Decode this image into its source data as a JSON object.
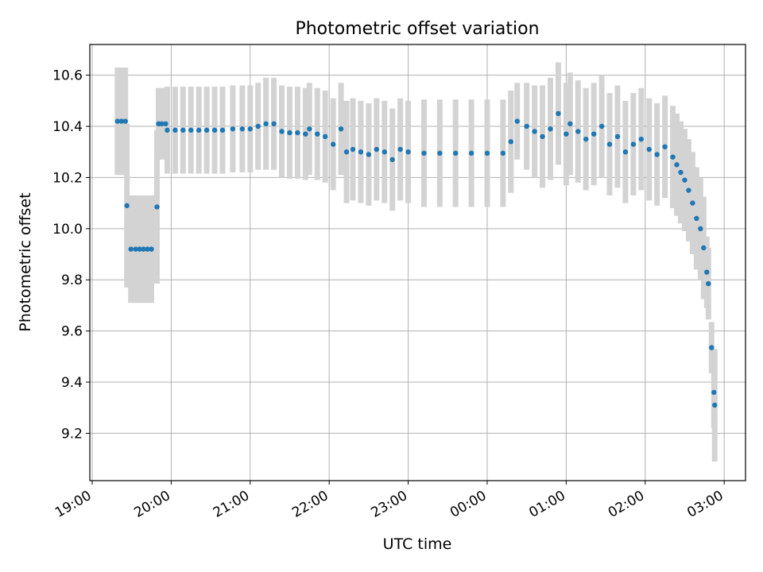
{
  "chart_data": {
    "type": "scatter",
    "title": "Photometric offset variation",
    "xlabel": "UTC time",
    "ylabel": "Photometric offset",
    "x_unit": "hours (UTC, continuing past midnight)",
    "xlim": [
      18.97,
      27.27
    ],
    "ylim": [
      9.015,
      10.72
    ],
    "grid": true,
    "x_ticks": [
      {
        "value": 19,
        "label": "19:00"
      },
      {
        "value": 20,
        "label": "20:00"
      },
      {
        "value": 21,
        "label": "21:00"
      },
      {
        "value": 22,
        "label": "22:00"
      },
      {
        "value": 23,
        "label": "23:00"
      },
      {
        "value": 24,
        "label": "00:00"
      },
      {
        "value": 25,
        "label": "01:00"
      },
      {
        "value": 26,
        "label": "02:00"
      },
      {
        "value": 27,
        "label": "03:00"
      }
    ],
    "y_ticks": [
      {
        "value": 9.2,
        "label": "9.2"
      },
      {
        "value": 9.4,
        "label": "9.4"
      },
      {
        "value": 9.6,
        "label": "9.6"
      },
      {
        "value": 9.8,
        "label": "9.8"
      },
      {
        "value": 10.0,
        "label": "10.0"
      },
      {
        "value": 10.2,
        "label": "10.2"
      },
      {
        "value": 10.4,
        "label": "10.4"
      },
      {
        "value": 10.6,
        "label": "10.6"
      }
    ],
    "colors": {
      "points": "#1f77b4",
      "error_bars": "#d3d3d3",
      "grid": "#b0b0b0"
    },
    "series": [
      {
        "points": [
          [
            19.32,
            10.42,
            0.21
          ],
          [
            19.37,
            10.42,
            0.21
          ],
          [
            19.42,
            10.42,
            0.21
          ],
          [
            19.44,
            10.09,
            0.32
          ],
          [
            19.49,
            9.92,
            0.21
          ],
          [
            19.55,
            9.92,
            0.21
          ],
          [
            19.6,
            9.92,
            0.21
          ],
          [
            19.65,
            9.92,
            0.21
          ],
          [
            19.7,
            9.92,
            0.21
          ],
          [
            19.75,
            9.92,
            0.21
          ],
          [
            19.82,
            10.085,
            0.3
          ],
          [
            19.84,
            10.41,
            0.14
          ],
          [
            19.88,
            10.41,
            0.14
          ],
          [
            19.93,
            10.41,
            0.14
          ],
          [
            19.95,
            10.385,
            0.17
          ],
          [
            20.05,
            10.385,
            0.17
          ],
          [
            20.15,
            10.385,
            0.17
          ],
          [
            20.25,
            10.385,
            0.17
          ],
          [
            20.35,
            10.385,
            0.17
          ],
          [
            20.45,
            10.385,
            0.17
          ],
          [
            20.55,
            10.385,
            0.17
          ],
          [
            20.65,
            10.385,
            0.17
          ],
          [
            20.78,
            10.39,
            0.17
          ],
          [
            20.9,
            10.39,
            0.17
          ],
          [
            21.0,
            10.39,
            0.17
          ],
          [
            21.1,
            10.4,
            0.17
          ],
          [
            21.2,
            10.41,
            0.18
          ],
          [
            21.3,
            10.41,
            0.18
          ],
          [
            21.4,
            10.38,
            0.18
          ],
          [
            21.5,
            10.375,
            0.18
          ],
          [
            21.6,
            10.375,
            0.18
          ],
          [
            21.7,
            10.37,
            0.18
          ],
          [
            21.75,
            10.39,
            0.18
          ],
          [
            21.85,
            10.37,
            0.18
          ],
          [
            21.95,
            10.36,
            0.18
          ],
          [
            22.05,
            10.33,
            0.18
          ],
          [
            22.15,
            10.39,
            0.18
          ],
          [
            22.22,
            10.3,
            0.2
          ],
          [
            22.3,
            10.31,
            0.2
          ],
          [
            22.4,
            10.3,
            0.2
          ],
          [
            22.5,
            10.29,
            0.2
          ],
          [
            22.6,
            10.31,
            0.2
          ],
          [
            22.7,
            10.3,
            0.2
          ],
          [
            22.8,
            10.27,
            0.2
          ],
          [
            22.9,
            10.31,
            0.2
          ],
          [
            23.0,
            10.3,
            0.2
          ],
          [
            23.2,
            10.295,
            0.21
          ],
          [
            23.4,
            10.295,
            0.21
          ],
          [
            23.6,
            10.295,
            0.21
          ],
          [
            23.8,
            10.295,
            0.21
          ],
          [
            24.0,
            10.295,
            0.21
          ],
          [
            24.2,
            10.295,
            0.21
          ],
          [
            24.3,
            10.34,
            0.2
          ],
          [
            24.38,
            10.42,
            0.15
          ],
          [
            24.5,
            10.4,
            0.17
          ],
          [
            24.6,
            10.38,
            0.18
          ],
          [
            24.7,
            10.36,
            0.2
          ],
          [
            24.8,
            10.39,
            0.2
          ],
          [
            24.9,
            10.45,
            0.2
          ],
          [
            25.0,
            10.37,
            0.2
          ],
          [
            25.05,
            10.41,
            0.2
          ],
          [
            25.15,
            10.38,
            0.2
          ],
          [
            25.25,
            10.35,
            0.2
          ],
          [
            25.35,
            10.37,
            0.2
          ],
          [
            25.45,
            10.4,
            0.2
          ],
          [
            25.55,
            10.33,
            0.2
          ],
          [
            25.65,
            10.36,
            0.2
          ],
          [
            25.75,
            10.3,
            0.2
          ],
          [
            25.85,
            10.33,
            0.2
          ],
          [
            25.95,
            10.35,
            0.2
          ],
          [
            26.05,
            10.31,
            0.2
          ],
          [
            26.15,
            10.29,
            0.2
          ],
          [
            26.25,
            10.32,
            0.2
          ],
          [
            26.35,
            10.28,
            0.2
          ],
          [
            26.4,
            10.25,
            0.2
          ],
          [
            26.45,
            10.22,
            0.2
          ],
          [
            26.5,
            10.19,
            0.2
          ],
          [
            26.55,
            10.15,
            0.2
          ],
          [
            26.6,
            10.1,
            0.2
          ],
          [
            26.65,
            10.04,
            0.2
          ],
          [
            26.7,
            10.0,
            0.2
          ],
          [
            26.74,
            9.925,
            0.2
          ],
          [
            26.78,
            9.83,
            0.14
          ],
          [
            26.8,
            9.785,
            0.14
          ],
          [
            26.84,
            9.535,
            0.1
          ],
          [
            26.87,
            9.36,
            0.14
          ],
          [
            26.88,
            9.31,
            0.22
          ]
        ]
      }
    ]
  }
}
